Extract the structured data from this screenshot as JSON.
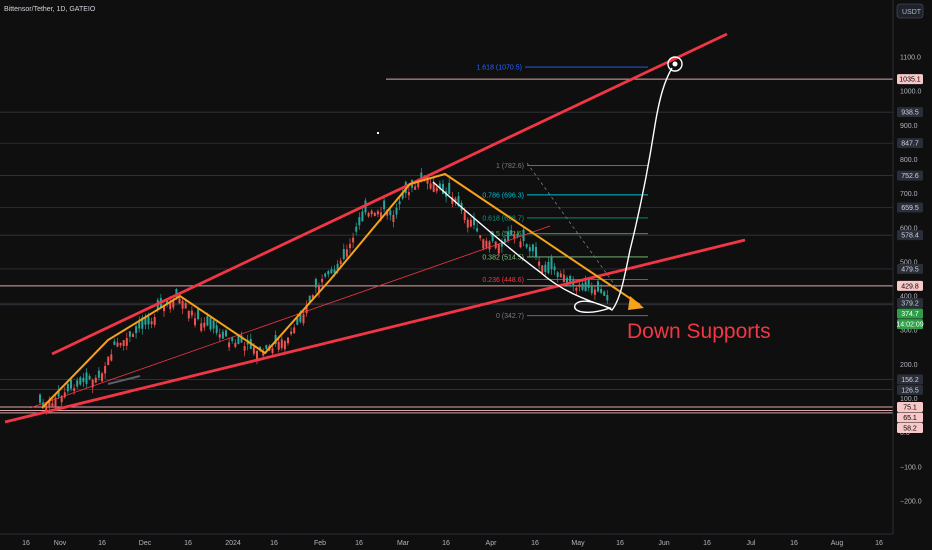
{
  "header": {
    "symbol_title": "Bittensor/Tether, 1D, GATEIO"
  },
  "currency_button": "USDT",
  "colors": {
    "background": "#0f0f0f",
    "candle_up": "#26a69a",
    "candle_down": "#ef5350",
    "channel": "#f23645",
    "zigzag": "#f7a21b",
    "annotation_path": "#ffffff",
    "price_tag": "#2e9e48"
  },
  "chart_data": {
    "type": "candlestick",
    "y_axis_ticks": [
      "1100.0",
      "1000.0",
      "900.0",
      "800.0",
      "700.0",
      "600.0",
      "500.0",
      "400.0",
      "300.0",
      "200.0",
      "100.0",
      "0.0",
      "−100.0",
      "−200.0"
    ],
    "x_axis_ticks": [
      "16",
      "Nov",
      "16",
      "Dec",
      "16",
      "2024",
      "16",
      "Feb",
      "16",
      "Mar",
      "16",
      "Apr",
      "16",
      "May",
      "16",
      "Jun",
      "16",
      "Jul",
      "16",
      "Aug",
      "16"
    ],
    "fib_levels": [
      {
        "label": "1.618 (1070.5)",
        "value": 1070.5,
        "color": "#2962ff"
      },
      {
        "label": "1 (782.6)",
        "value": 782.6,
        "color": "#787b86"
      },
      {
        "label": "0.786 (696.3)",
        "value": 696.3,
        "color": "#00bcd4"
      },
      {
        "label": "0.618 (628.7)",
        "value": 628.7,
        "color": "#089981"
      },
      {
        "label": "0.5 (582.6)",
        "value": 582.6,
        "color": "#4caf50"
      },
      {
        "label": "0.382 (514.5)",
        "value": 514.5,
        "color": "#81c784"
      },
      {
        "label": "0.236 (448.6)",
        "value": 448.6,
        "color": "#f23645"
      },
      {
        "label": "0 (342.7)",
        "value": 342.7,
        "color": "#787b86"
      }
    ],
    "price_tags": [
      {
        "label": "1035.1",
        "value": 1035.1,
        "bg": "#f8c8c8",
        "fg": "#000000"
      },
      {
        "label": "938.5",
        "value": 938.5,
        "bg": "#2a2e39",
        "fg": "#d1d4dc"
      },
      {
        "label": "847.7",
        "value": 847.7,
        "bg": "#2a2e39",
        "fg": "#d1d4dc"
      },
      {
        "label": "752.6",
        "value": 752.6,
        "bg": "#2a2e39",
        "fg": "#d1d4dc"
      },
      {
        "label": "659.5",
        "value": 659.5,
        "bg": "#2a2e39",
        "fg": "#d1d4dc"
      },
      {
        "label": "578.4",
        "value": 578.4,
        "bg": "#2a2e39",
        "fg": "#d1d4dc"
      },
      {
        "label": "479.5",
        "value": 479.5,
        "bg": "#2a2e39",
        "fg": "#d1d4dc"
      },
      {
        "label": "429.8",
        "value": 429.8,
        "bg": "#f8c8c8",
        "fg": "#000000"
      },
      {
        "label": "379.2",
        "value": 379.2,
        "bg": "#2a2e39",
        "fg": "#d1d4dc"
      },
      {
        "label": "374.7",
        "value": 374.7,
        "bg": "#2e9e48",
        "fg": "#ffffff"
      },
      {
        "label": "14:02:09",
        "value": 350,
        "bg": "#2e9e48",
        "fg": "#ffffff"
      },
      {
        "label": "156.2",
        "value": 156.2,
        "bg": "#2a2e39",
        "fg": "#d1d4dc"
      },
      {
        "label": "126.5",
        "value": 126.5,
        "bg": "#2a2e39",
        "fg": "#d1d4dc"
      },
      {
        "label": "75.1",
        "value": 75.1,
        "bg": "#f8c8c8",
        "fg": "#000000"
      },
      {
        "label": "65.1",
        "value": 65.1,
        "bg": "#f8c8c8",
        "fg": "#000000"
      },
      {
        "label": "58.2",
        "value": 58.2,
        "bg": "#f8c8c8",
        "fg": "#000000"
      }
    ],
    "annotation_text": "Down Supports"
  }
}
